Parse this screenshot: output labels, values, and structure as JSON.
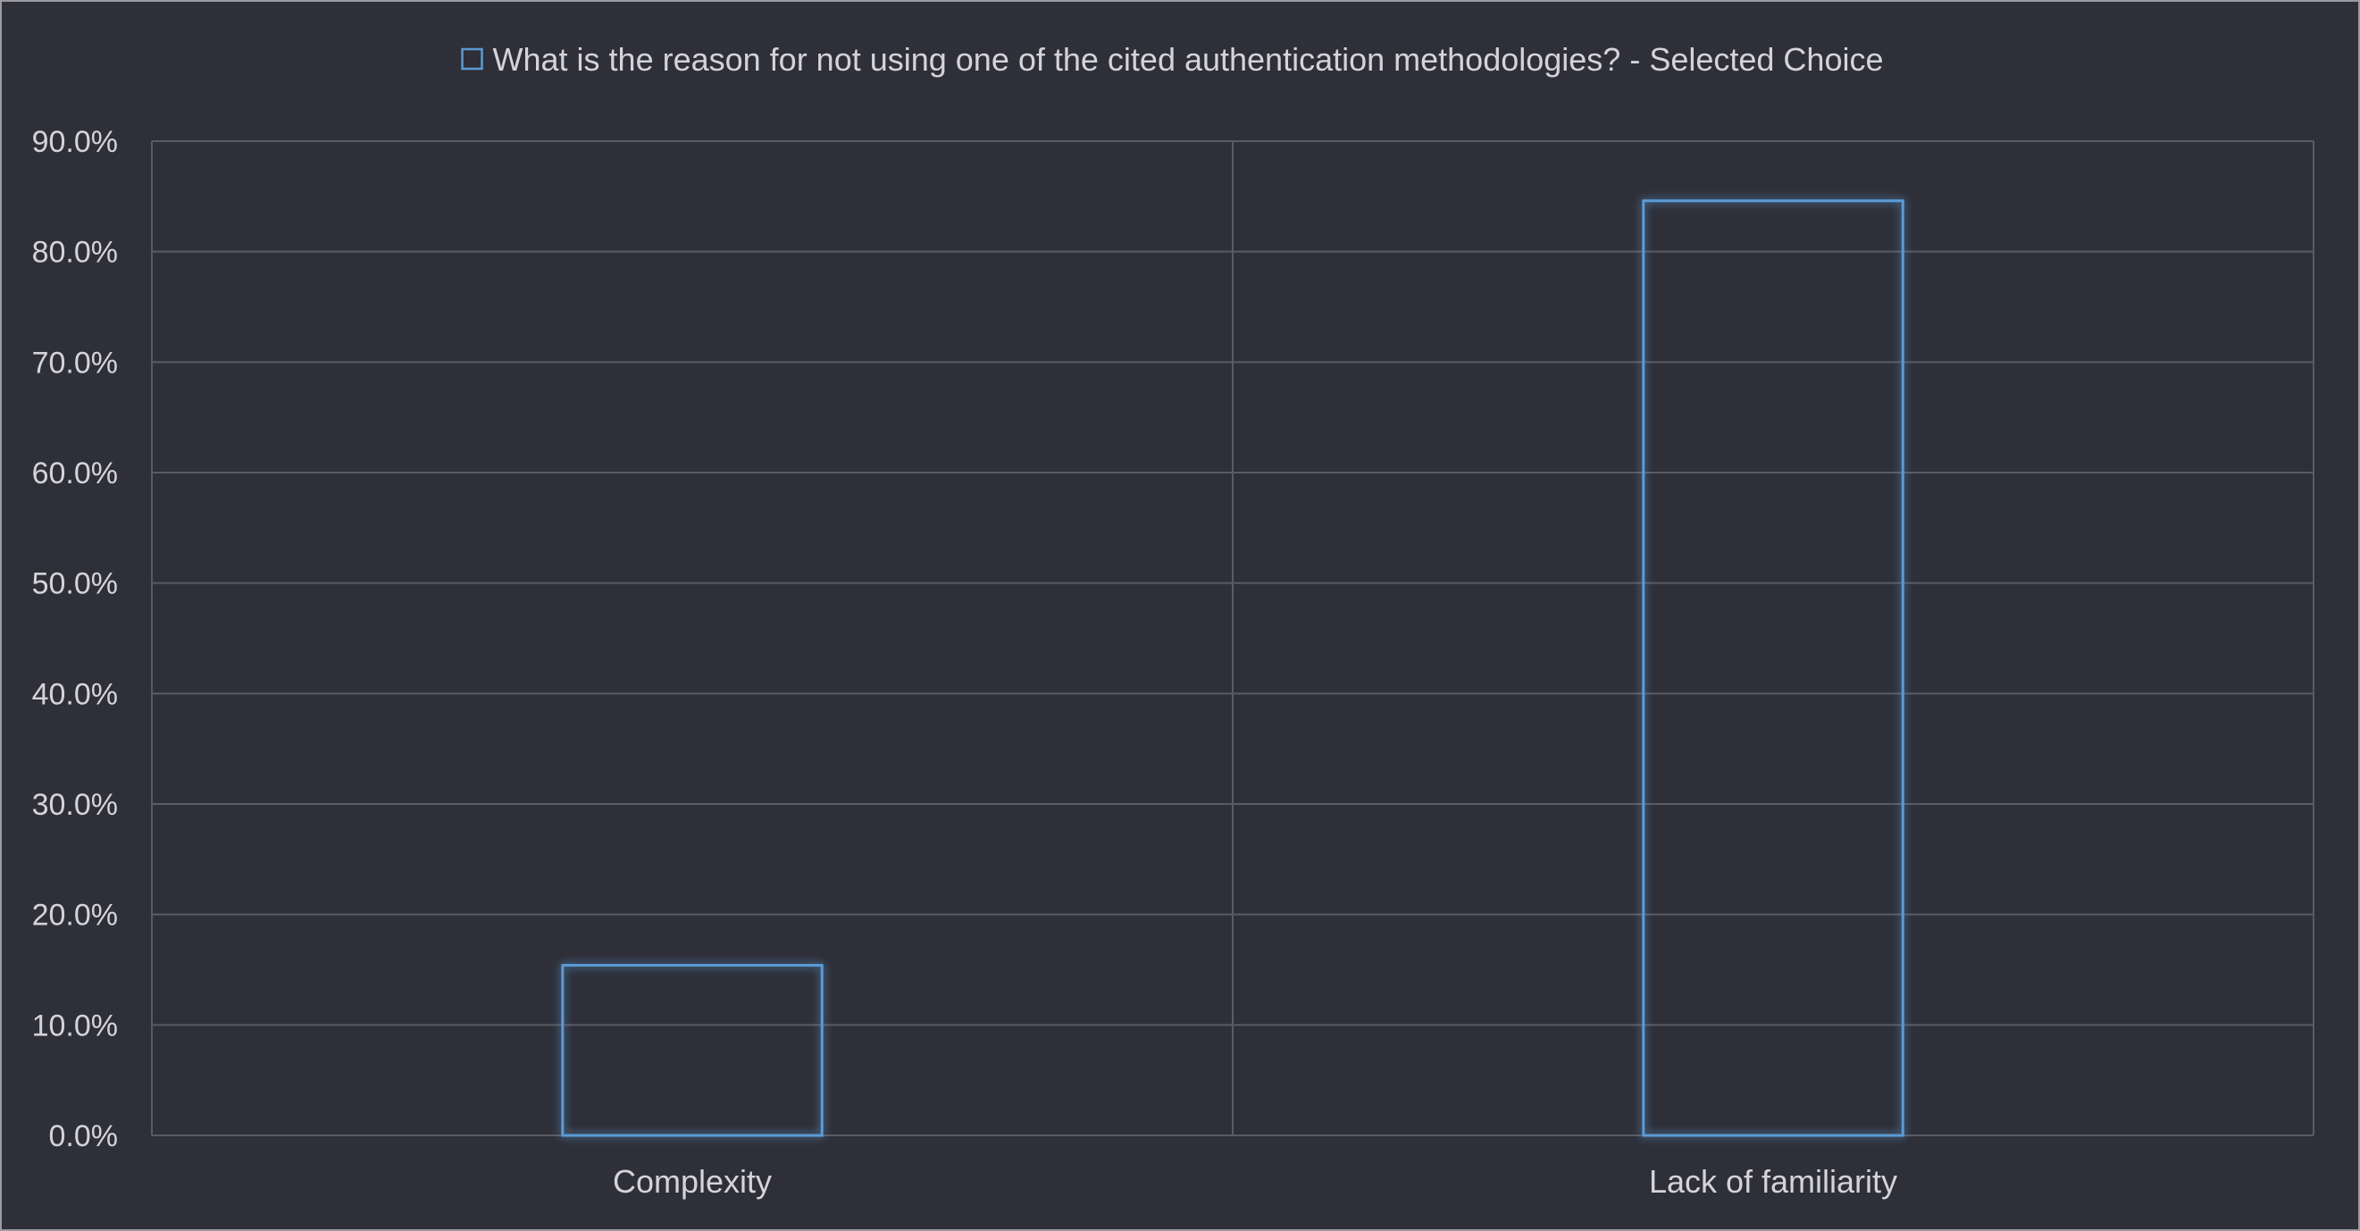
{
  "chart_data": {
    "type": "bar",
    "title": "",
    "legend": {
      "placement": "top",
      "entries": [
        "What is the reason for not using one of the cited authentication methodologies? - Selected Choice"
      ]
    },
    "series": [
      {
        "name": "What is the reason for not using one of the cited authentication methodologies? - Selected Choice",
        "values": [
          15.4,
          84.6
        ]
      }
    ],
    "categories": [
      "Complexity",
      "Lack of familiarity"
    ],
    "ylim": [
      0,
      90
    ],
    "yticks": [
      "0.0%",
      "10.0%",
      "20.0%",
      "30.0%",
      "40.0%",
      "50.0%",
      "60.0%",
      "70.0%",
      "80.0%",
      "90.0%"
    ],
    "grid": true,
    "bar_style": "outline",
    "colors": {
      "background": "#2e2f38",
      "grid": "#5a5b63",
      "bar_stroke": "#5b9bd5",
      "text": "#d4d4d8"
    }
  }
}
